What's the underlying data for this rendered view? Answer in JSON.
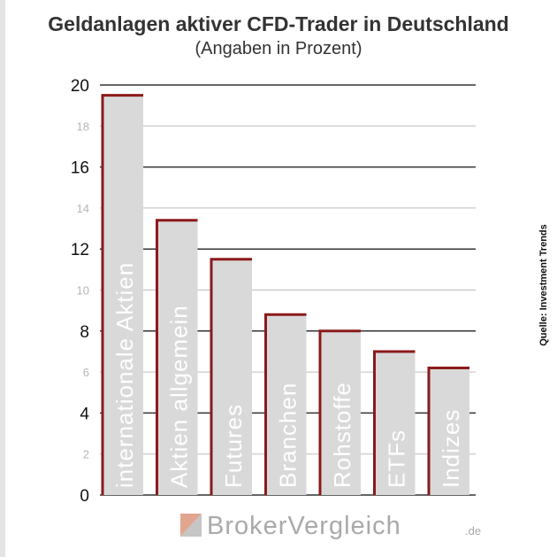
{
  "title": "Geldanlagen aktiver CFD-Trader in Deutschland",
  "subtitle": "(Angaben in Prozent)",
  "source": "Quelle: Investment Trends",
  "logo": {
    "text": "BrokerVergleich",
    "suffix": ".de"
  },
  "colors": {
    "bar_fill": "#d9d9d9",
    "bar_outline": "#8b1a1a",
    "bar_label": "#ffffff",
    "grid": "#333333"
  },
  "chart_data": {
    "type": "bar",
    "categories": [
      "internationale Aktien",
      "Aktien allgemein",
      "Futures",
      "Branchen",
      "Rohstoffe",
      "ETFs",
      "Indizes"
    ],
    "values": [
      19.5,
      13.4,
      11.5,
      8.8,
      8.0,
      7.0,
      6.2
    ],
    "title": "Geldanlagen aktiver CFD-Trader in Deutschland",
    "subtitle": "(Angaben in Prozent)",
    "ylim": [
      0,
      20
    ],
    "major_ticks": [
      0,
      4,
      8,
      12,
      16,
      20
    ],
    "minor_ticks": [
      2,
      6,
      10,
      14,
      18
    ],
    "grid": true,
    "legend": "none"
  }
}
